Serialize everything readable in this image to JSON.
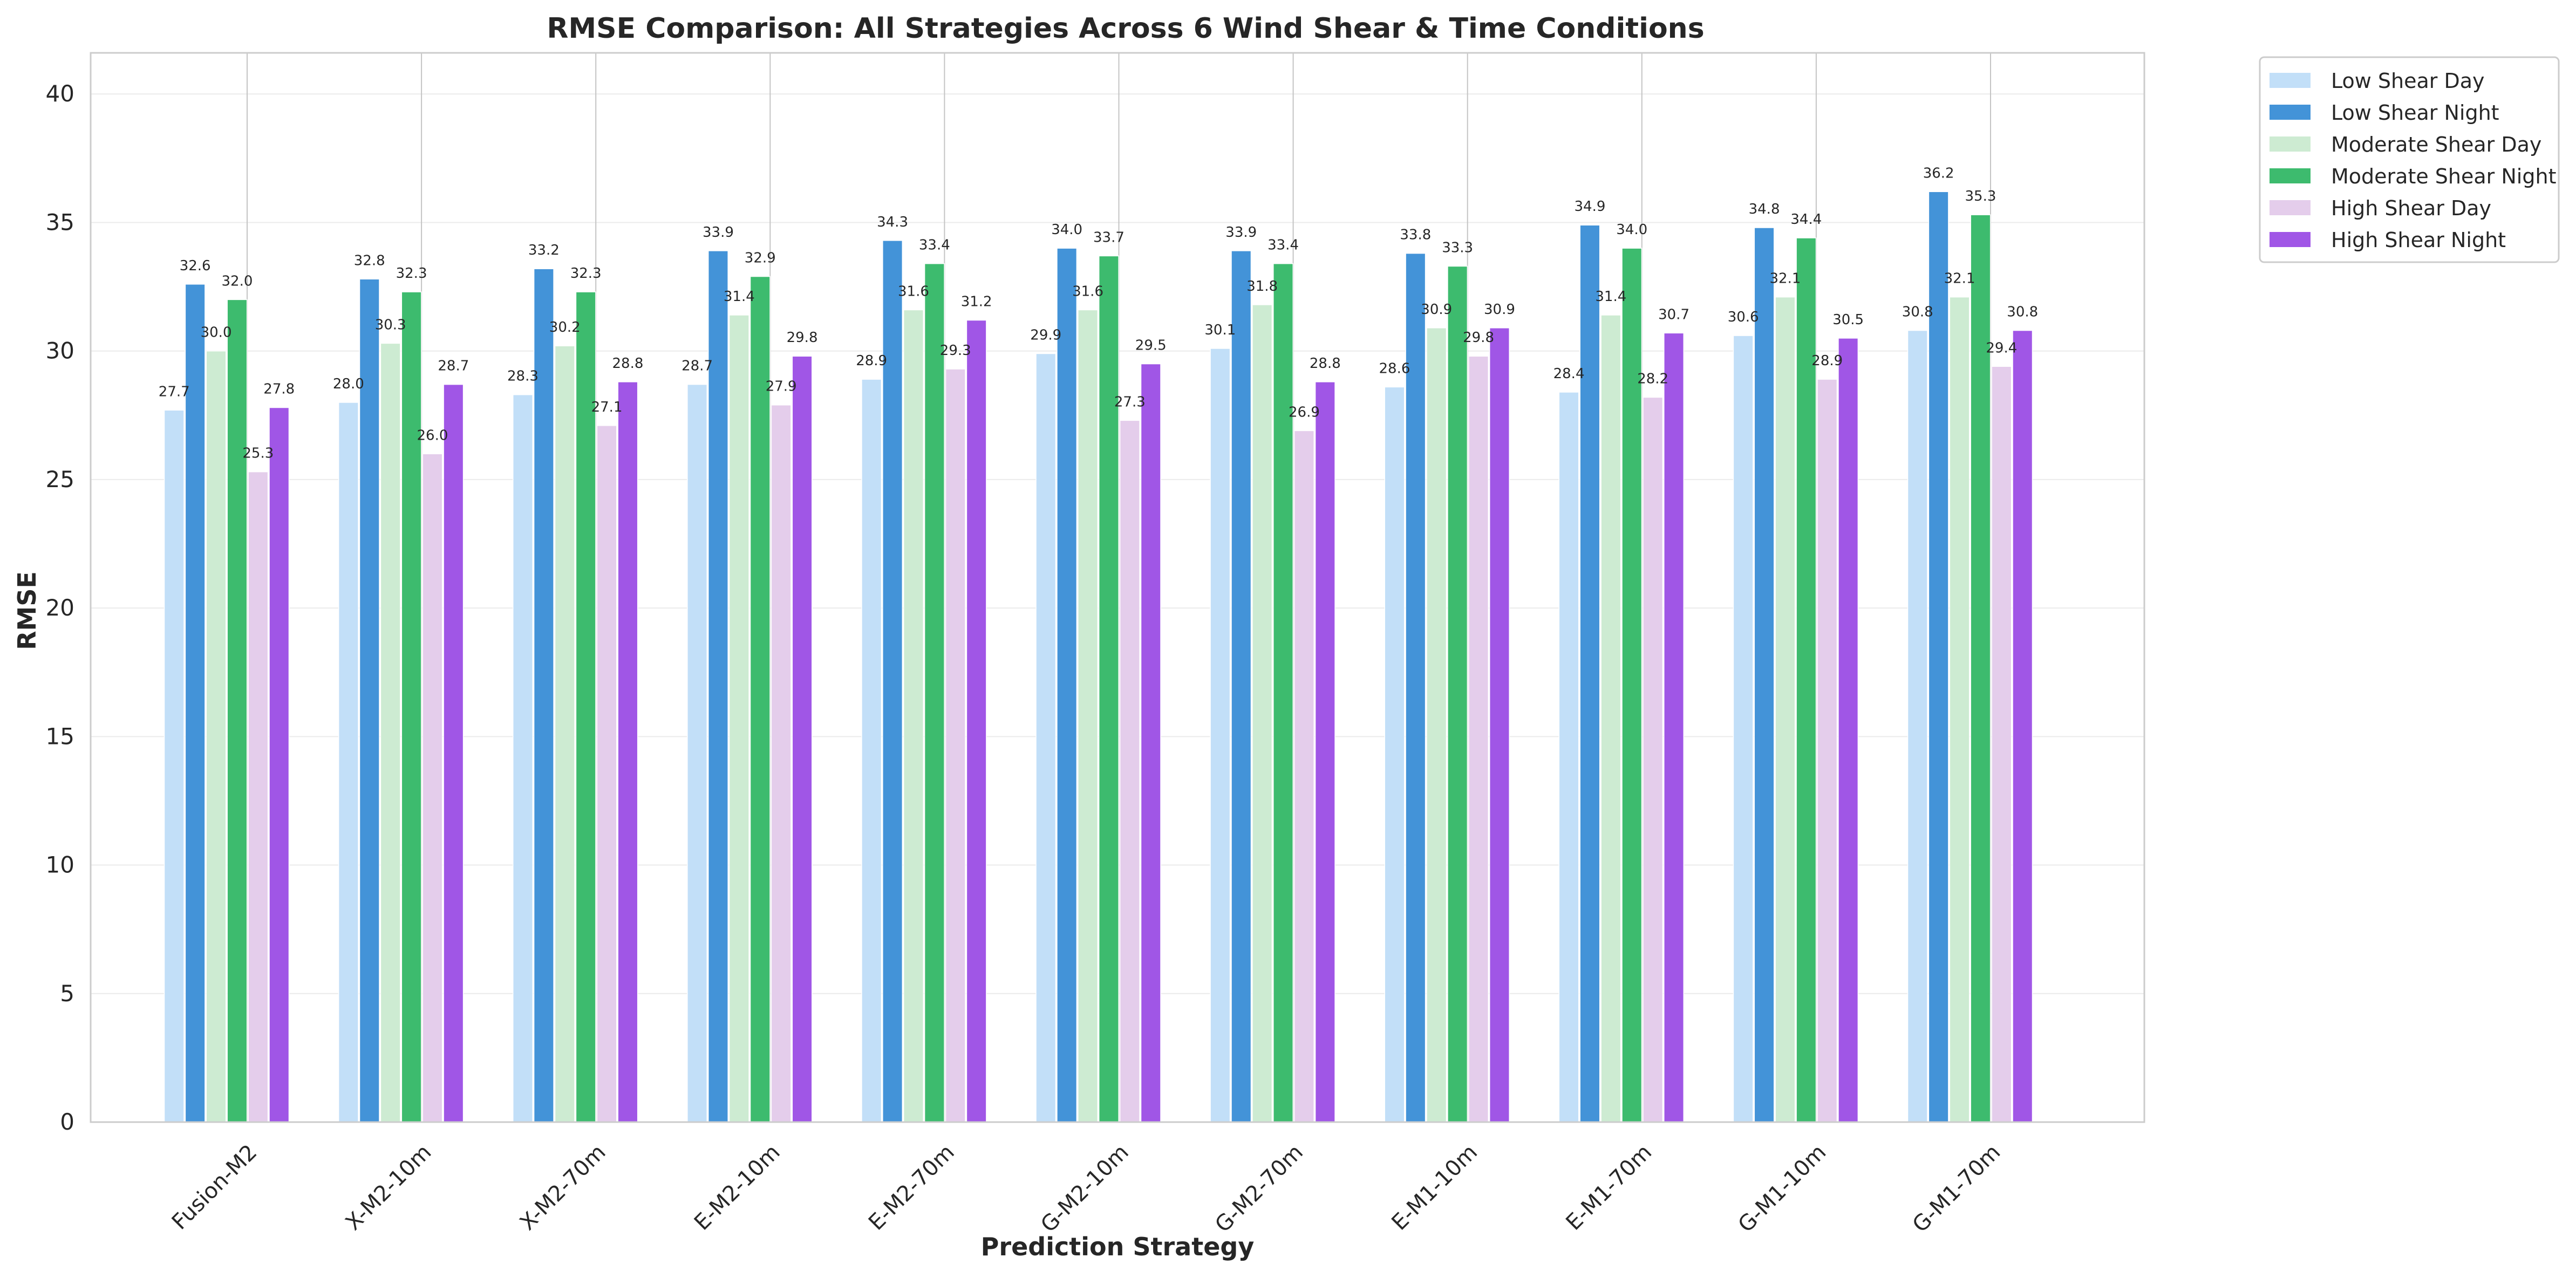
{
  "chart_data": {
    "type": "bar",
    "title": "RMSE Comparison: All Strategies Across 6 Wind Shear & Time Conditions",
    "xlabel": "Prediction Strategy",
    "ylabel": "RMSE",
    "ylim": [
      0,
      41.6
    ],
    "yticks": [
      0,
      5,
      10,
      15,
      20,
      25,
      30,
      35,
      40
    ],
    "grid": true,
    "legend_position": "outside-top-right",
    "categories": [
      "Fusion-M2",
      "X-M2-10m",
      "X-M2-70m",
      "E-M2-10m",
      "E-M2-70m",
      "G-M2-10m",
      "G-M2-70m",
      "E-M1-10m",
      "E-M1-70m",
      "G-M1-10m",
      "G-M1-70m"
    ],
    "series": [
      {
        "name": "Low Shear Day",
        "color": "#c2dff8",
        "values": [
          27.7,
          28.0,
          28.3,
          28.7,
          28.9,
          29.9,
          30.1,
          28.6,
          28.4,
          30.6,
          30.8
        ]
      },
      {
        "name": "Low Shear Night",
        "color": "#4393d8",
        "values": [
          32.6,
          32.8,
          33.2,
          33.9,
          34.3,
          34.0,
          33.9,
          33.8,
          34.9,
          34.8,
          36.2
        ]
      },
      {
        "name": "Moderate Shear Day",
        "color": "#cdebd2",
        "values": [
          30.0,
          30.3,
          30.2,
          31.4,
          31.6,
          31.6,
          31.8,
          30.9,
          31.4,
          32.1,
          32.1
        ]
      },
      {
        "name": "Moderate Shear Night",
        "color": "#3dbb6e",
        "values": [
          32.0,
          32.3,
          32.3,
          32.9,
          33.4,
          33.7,
          33.4,
          33.3,
          34.0,
          34.4,
          35.3
        ]
      },
      {
        "name": "High Shear Day",
        "color": "#e4cdeb",
        "values": [
          25.3,
          26.0,
          27.1,
          27.9,
          29.3,
          27.3,
          26.9,
          29.8,
          28.2,
          28.9,
          29.4
        ]
      },
      {
        "name": "High Shear Night",
        "color": "#a056e6",
        "values": [
          27.8,
          28.7,
          28.8,
          29.8,
          31.2,
          29.5,
          28.8,
          30.9,
          30.7,
          30.5,
          30.8
        ]
      }
    ]
  }
}
